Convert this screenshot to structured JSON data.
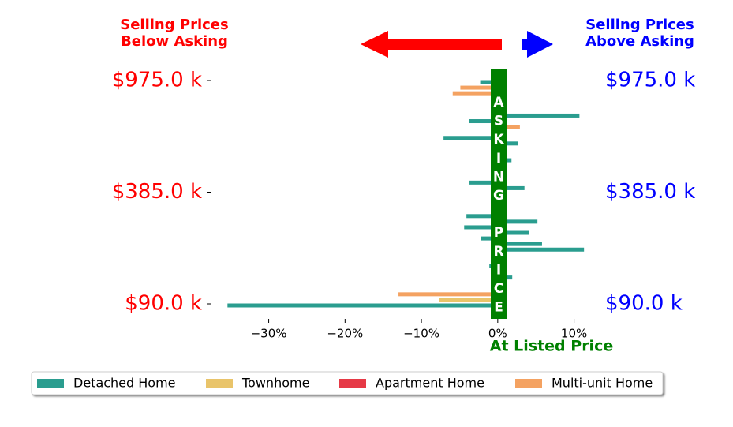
{
  "chart_data": {
    "type": "bar",
    "orientation": "horizontal",
    "left_note": [
      "Selling Prices",
      "Below Asking"
    ],
    "right_note": [
      "Selling Prices",
      "Above Asking"
    ],
    "center_label": "ASKING PRICE",
    "x_label": "At Listed Price",
    "categories": [
      "$975.0 k",
      null,
      null,
      null,
      null,
      null,
      null,
      null,
      null,
      null,
      null,
      null,
      null,
      null,
      null,
      null,
      null,
      null,
      null,
      null,
      "$385.0 k",
      null,
      null,
      null,
      null,
      null,
      null,
      null,
      null,
      null,
      null,
      null,
      null,
      null,
      null,
      null,
      null,
      null,
      null,
      null,
      "$90.0 k"
    ],
    "series": [
      {
        "name": "Detached Home",
        "color": "#2a9d8f",
        "values": [
          -2.3,
          null,
          null,
          null,
          null,
          null,
          10.7,
          -3.8,
          null,
          null,
          -7.1,
          2.7,
          null,
          null,
          1.8,
          null,
          null,
          null,
          -3.7,
          3.5,
          null,
          null,
          null,
          null,
          -4.1,
          5.2,
          -4.4,
          4.1,
          -2.2,
          5.8,
          11.3,
          null,
          null,
          -1.1,
          null,
          1.9,
          null,
          null,
          null,
          null,
          -35.4
        ]
      },
      {
        "name": "Townhome",
        "color": "#e9c46a",
        "values": [
          null,
          null,
          null,
          null,
          null,
          null,
          null,
          null,
          null,
          null,
          null,
          null,
          null,
          null,
          null,
          null,
          null,
          null,
          null,
          null,
          null,
          null,
          null,
          null,
          null,
          null,
          null,
          null,
          null,
          null,
          null,
          null,
          null,
          null,
          null,
          null,
          null,
          null,
          null,
          -7.7,
          null
        ]
      },
      {
        "name": "Apartment Home",
        "color": "#e63946",
        "values": [
          null,
          null,
          null,
          null,
          null,
          null,
          null,
          null,
          null,
          null,
          null,
          null,
          null,
          null,
          null,
          null,
          null,
          null,
          null,
          null,
          null,
          null,
          null,
          null,
          null,
          null,
          null,
          null,
          null,
          null,
          null,
          null,
          null,
          null,
          null,
          null,
          null,
          null,
          null,
          null,
          null
        ]
      },
      {
        "name": "Multi-unit Home",
        "color": "#f4a261",
        "values": [
          null,
          -4.9,
          -5.9,
          null,
          null,
          null,
          null,
          null,
          2.9,
          null,
          null,
          null,
          null,
          null,
          null,
          null,
          null,
          null,
          null,
          null,
          null,
          null,
          null,
          null,
          null,
          null,
          null,
          null,
          null,
          null,
          null,
          null,
          null,
          null,
          null,
          null,
          null,
          null,
          -13.0,
          null,
          null
        ]
      }
    ],
    "xlim": [
      -37.5,
      11.8
    ],
    "xticks": [
      {
        "value": -30,
        "label": "−30%"
      },
      {
        "value": -20,
        "label": "−20%"
      },
      {
        "value": -10,
        "label": "−10%"
      },
      {
        "value": 0,
        "label": "0%"
      },
      {
        "value": 10,
        "label": "10%"
      }
    ],
    "legend": "lower center"
  }
}
